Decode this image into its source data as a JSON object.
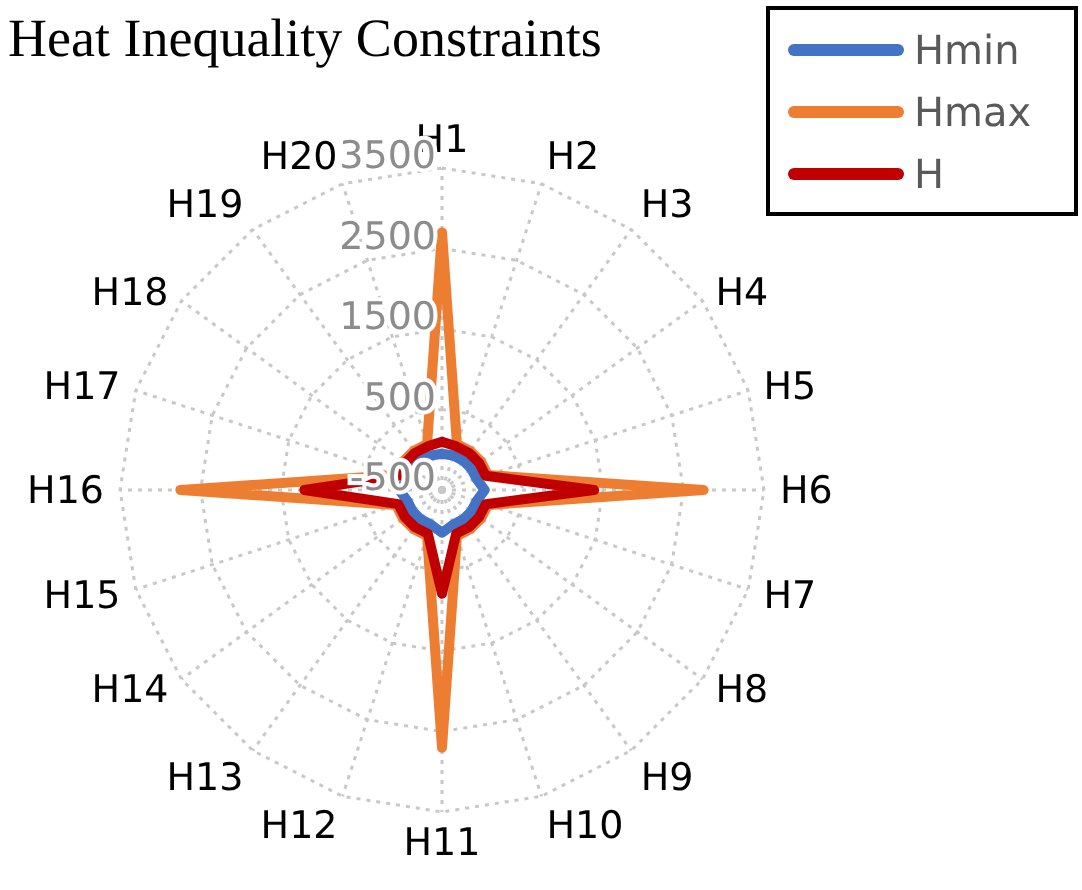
{
  "chart_data": {
    "type": "radar",
    "title": "Heat Inequality Constraints",
    "categories": [
      "H1",
      "H2",
      "H3",
      "H4",
      "H5",
      "H6",
      "H7",
      "H8",
      "H9",
      "H10",
      "H11",
      "H12",
      "H13",
      "H14",
      "H15",
      "H16",
      "H17",
      "H18",
      "H19",
      "H20"
    ],
    "series": [
      {
        "name": "Hmin",
        "color": "#4472c4",
        "values": [
          -50,
          -50,
          -50,
          -50,
          -50,
          30,
          -50,
          -50,
          -50,
          -50,
          30,
          -50,
          -50,
          -50,
          -50,
          30,
          -50,
          -50,
          -50,
          -50
        ]
      },
      {
        "name": "Hmax",
        "color": "#ed7d31",
        "values": [
          2700,
          100,
          100,
          100,
          100,
          2750,
          100,
          100,
          100,
          100,
          2700,
          100,
          100,
          100,
          100,
          2750,
          100,
          100,
          100,
          100
        ]
      },
      {
        "name": "H",
        "color": "#c00000",
        "values": [
          100,
          70,
          70,
          70,
          70,
          1390,
          70,
          70,
          70,
          70,
          790,
          70,
          70,
          70,
          70,
          1210,
          70,
          70,
          70,
          70
        ]
      }
    ],
    "ylim": [
      -500,
      3500
    ],
    "yticks": [
      -500,
      500,
      1500,
      2500,
      3500
    ],
    "grid": true,
    "legend": "top right",
    "marker": "none",
    "line_style": "solid"
  }
}
